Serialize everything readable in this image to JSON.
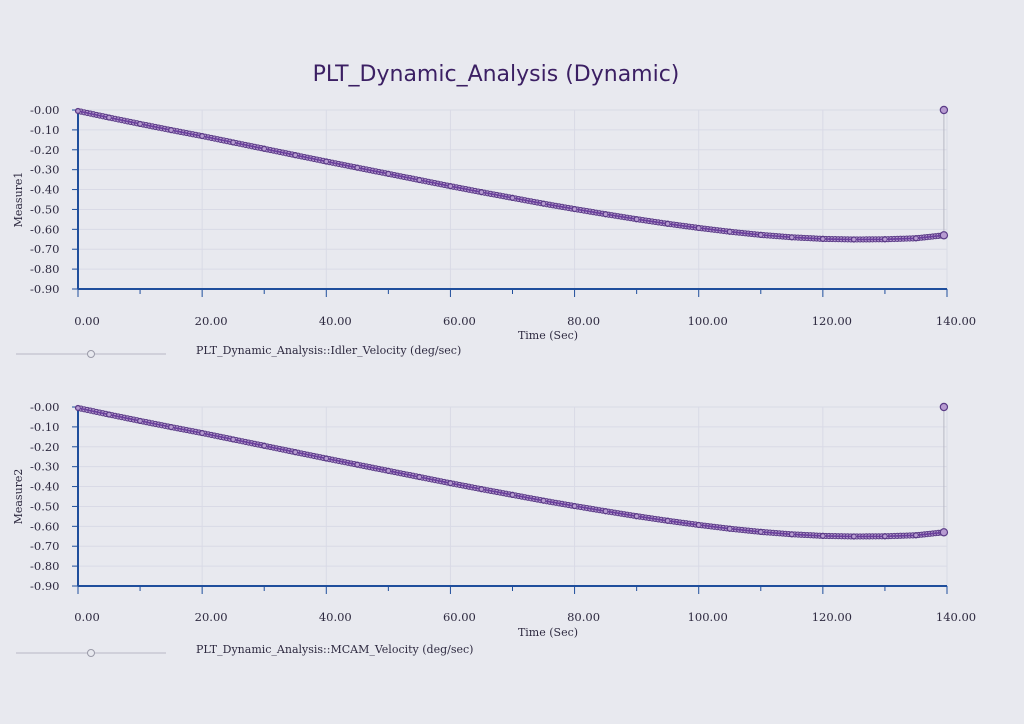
{
  "title": "PLT_Dynamic_Analysis (Dynamic)",
  "colors": {
    "background": "#e8e9ef",
    "title": "#3b1f63",
    "axis": "#1f4e9c",
    "grid": "#d9dae6",
    "series": "#6a3f9c",
    "marker_edge": "#5a3b86",
    "marker_fill": "#b79bd1",
    "end_line": "#b8b8c4",
    "legend_line": "#b8b8c4"
  },
  "chart_data": [
    {
      "type": "line",
      "ylabel": "Measure1",
      "xlabel": "Time (Sec)",
      "xlim": [
        0,
        140
      ],
      "ylim": [
        -0.9,
        0
      ],
      "x_ticks": [
        "0.00",
        "20.00",
        "40.00",
        "60.00",
        "80.00",
        "100.00",
        "120.00",
        "140.00"
      ],
      "y_ticks": [
        "-0.00",
        "-0.10",
        "-0.20",
        "-0.30",
        "-0.40",
        "-0.50",
        "-0.60",
        "-0.70",
        "-0.80",
        "-0.90"
      ],
      "grid": true,
      "legend": "PLT_Dynamic_Analysis::Idler_Velocity (deg/sec)",
      "series": [
        {
          "name": "PLT_Dynamic_Analysis::Idler_Velocity (deg/sec)",
          "x": [
            0,
            5,
            10,
            15,
            20,
            25,
            30,
            35,
            40,
            45,
            50,
            55,
            60,
            65,
            70,
            75,
            80,
            85,
            90,
            95,
            100,
            105,
            110,
            115,
            120,
            125,
            130,
            135,
            139.5
          ],
          "y": [
            -0.005,
            -0.038,
            -0.07,
            -0.101,
            -0.131,
            -0.163,
            -0.195,
            -0.227,
            -0.259,
            -0.29,
            -0.321,
            -0.352,
            -0.383,
            -0.413,
            -0.442,
            -0.471,
            -0.498,
            -0.524,
            -0.549,
            -0.572,
            -0.593,
            -0.612,
            -0.628,
            -0.64,
            -0.648,
            -0.651,
            -0.65,
            -0.645,
            -0.63
          ],
          "end_marker": {
            "x": 139.5,
            "y": 0.0
          }
        }
      ]
    },
    {
      "type": "line",
      "ylabel": "Measure2",
      "xlabel": "Time (Sec)",
      "xlim": [
        0,
        140
      ],
      "ylim": [
        -0.9,
        0
      ],
      "x_ticks": [
        "0.00",
        "20.00",
        "40.00",
        "60.00",
        "80.00",
        "100.00",
        "120.00",
        "140.00"
      ],
      "y_ticks": [
        "-0.00",
        "-0.10",
        "-0.20",
        "-0.30",
        "-0.40",
        "-0.50",
        "-0.60",
        "-0.70",
        "-0.80",
        "-0.90"
      ],
      "grid": true,
      "legend": "PLT_Dynamic_Analysis::MCAM_Velocity (deg/sec)",
      "series": [
        {
          "name": "PLT_Dynamic_Analysis::MCAM_Velocity (deg/sec)",
          "x": [
            0,
            5,
            10,
            15,
            20,
            25,
            30,
            35,
            40,
            45,
            50,
            55,
            60,
            65,
            70,
            75,
            80,
            85,
            90,
            95,
            100,
            105,
            110,
            115,
            120,
            125,
            130,
            135,
            139.5
          ],
          "y": [
            -0.005,
            -0.038,
            -0.07,
            -0.101,
            -0.131,
            -0.163,
            -0.195,
            -0.227,
            -0.259,
            -0.29,
            -0.321,
            -0.352,
            -0.383,
            -0.413,
            -0.442,
            -0.471,
            -0.498,
            -0.524,
            -0.549,
            -0.572,
            -0.593,
            -0.612,
            -0.628,
            -0.64,
            -0.648,
            -0.651,
            -0.65,
            -0.645,
            -0.63
          ],
          "end_marker": {
            "x": 139.5,
            "y": 0.0
          }
        }
      ]
    }
  ]
}
